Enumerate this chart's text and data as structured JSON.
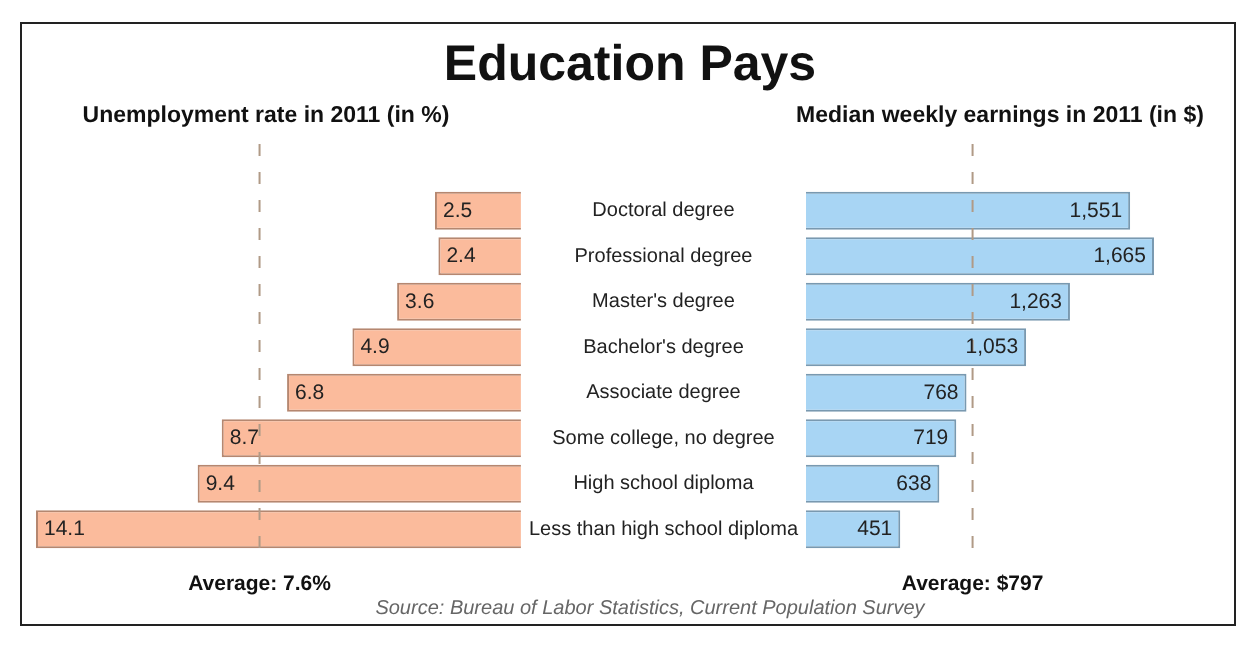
{
  "chart_data": [
    {
      "type": "bar",
      "orientation": "horizontal",
      "title": "Education Pays",
      "subtitle": "Unemployment rate in 2011 (in %)",
      "categories": [
        "Doctoral degree",
        "Professional degree",
        "Master's degree",
        "Bachelor's degree",
        "Associate degree",
        "Some college, no degree",
        "High school diploma",
        "Less than high school diploma"
      ],
      "values": [
        2.5,
        2.4,
        3.6,
        4.9,
        6.8,
        8.7,
        9.4,
        14.1
      ],
      "color": "#fbbb9c",
      "xlim": [
        14.1,
        0
      ],
      "data_labels": true,
      "tick_labels": "y",
      "ref_lines": [
        {
          "axis": "x",
          "value": 7.6,
          "label": "Average: 7.6%",
          "color": "#b09a86",
          "line_style": "dashed"
        }
      ]
    },
    {
      "type": "bar",
      "orientation": "horizontal",
      "subtitle": "Median weekly earnings in 2011 (in $)",
      "categories": [
        null,
        null,
        null,
        null,
        null,
        null,
        null,
        null
      ],
      "values": [
        1551,
        1665,
        1263,
        1053,
        768,
        719,
        638,
        451
      ],
      "value_labels": [
        "1,551",
        "1,665",
        "1,263",
        "1,053",
        "768",
        "719",
        "638",
        "451"
      ],
      "color": "#a8d5f4",
      "tick_labels": false,
      "ref_lines": [
        {
          "axis": "x",
          "value": 797,
          "label": "Average: $797",
          "color": "#b09a86",
          "line_style": "dashed"
        }
      ],
      "annotations": [
        "Source: Bureau of Labor Statistics, Current Population Survey"
      ]
    }
  ]
}
